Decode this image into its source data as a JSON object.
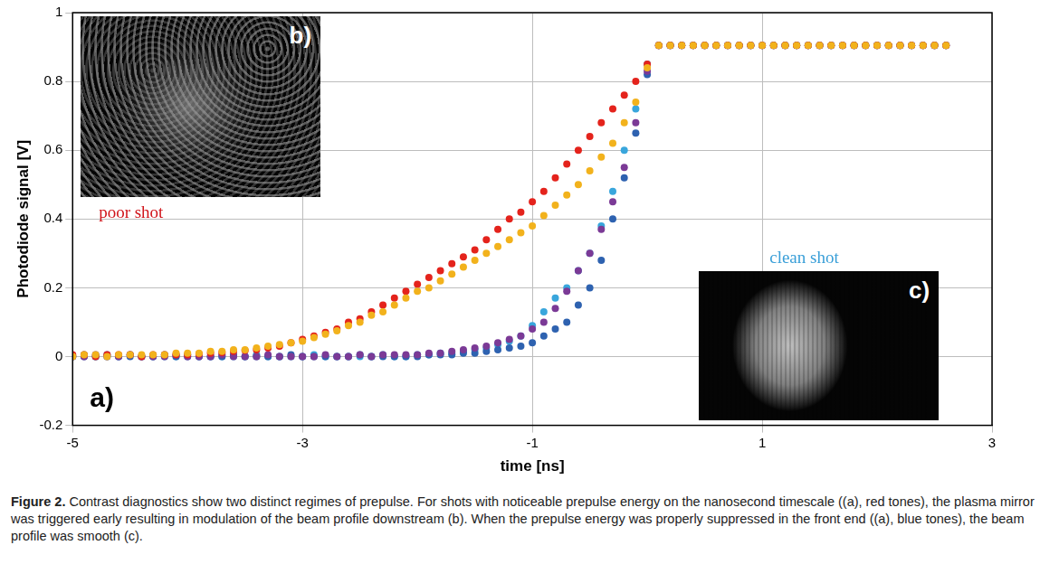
{
  "chart_data": {
    "type": "scatter",
    "x_label": "time [ns]",
    "y_label": "Photodiode signal [V]",
    "panel_label": "a)",
    "x": [
      -5,
      -4.9,
      -4.8,
      -4.7,
      -4.6,
      -4.5,
      -4.4,
      -4.3,
      -4.2,
      -4.1,
      -4,
      -3.9,
      -3.8,
      -3.7,
      -3.6,
      -3.5,
      -3.4,
      -3.3,
      -3.2,
      -3.1,
      -3,
      -2.9,
      -2.8,
      -2.7,
      -2.6,
      -2.5,
      -2.4,
      -2.3,
      -2.2,
      -2.1,
      -2,
      -1.9,
      -1.8,
      -1.7,
      -1.6,
      -1.5,
      -1.4,
      -1.3,
      -1.2,
      -1.1,
      -1,
      -0.9,
      -0.8,
      -0.7,
      -0.6,
      -0.5,
      -0.4,
      -0.3,
      -0.2,
      -0.1,
      0,
      0.1,
      0.2,
      0.3,
      0.4,
      0.5,
      0.6,
      0.7,
      0.8,
      0.9,
      1,
      1.1,
      1.2,
      1.3,
      1.4,
      1.5,
      1.6,
      1.7,
      1.8,
      1.9,
      2,
      2.1,
      2.2,
      2.3,
      2.4,
      2.5,
      2.6
    ],
    "series": [
      {
        "color": "#f2b21c",
        "values": [
          0,
          0.005,
          0.005,
          0,
          0.005,
          0.005,
          0.005,
          0.005,
          0.005,
          0.01,
          0.01,
          0.01,
          0.015,
          0.015,
          0.02,
          0.02,
          0.025,
          0.03,
          0.035,
          0.04,
          0.045,
          0.055,
          0.065,
          0.075,
          0.09,
          0.1,
          0.12,
          0.13,
          0.15,
          0.17,
          0.19,
          0.2,
          0.22,
          0.24,
          0.26,
          0.28,
          0.3,
          0.32,
          0.34,
          0.36,
          0.38,
          0.41,
          0.44,
          0.47,
          0.5,
          0.54,
          0.58,
          0.62,
          0.68,
          0.74,
          0.84,
          0.905,
          0.905,
          0.905,
          0.905,
          0.905,
          0.905,
          0.905,
          0.905,
          0.905,
          0.905,
          0.905,
          0.905,
          0.905,
          0.905,
          0.905,
          0.905,
          0.905,
          0.905,
          0.905,
          0.905,
          0.905,
          0.905,
          0.905,
          0.905,
          0.905,
          0.905
        ]
      },
      {
        "color": "#e4231c",
        "values": [
          0.005,
          0.005,
          0,
          0.005,
          0.005,
          0.005,
          0,
          0.005,
          0.005,
          0.005,
          0.005,
          0.008,
          0.01,
          0.012,
          0.015,
          0.018,
          0.02,
          0.025,
          0.03,
          0.04,
          0.05,
          0.06,
          0.07,
          0.08,
          0.1,
          0.11,
          0.13,
          0.15,
          0.17,
          0.19,
          0.21,
          0.23,
          0.25,
          0.27,
          0.29,
          0.31,
          0.34,
          0.37,
          0.4,
          0.42,
          0.45,
          0.48,
          0.52,
          0.56,
          0.6,
          0.64,
          0.68,
          0.72,
          0.76,
          0.8,
          0.85,
          0.905,
          0.905,
          0.905,
          0.905,
          0.905,
          0.905,
          0.905,
          0.905,
          0.905,
          0.905,
          0.905,
          0.905,
          0.905,
          0.905,
          0.905,
          0.905,
          0.905,
          0.905,
          0.905,
          0.905,
          0.905,
          0.905,
          0.905,
          0.905,
          0.905,
          0.905
        ]
      },
      {
        "color": "#7b3a96",
        "values": [
          0,
          0,
          0.005,
          0,
          0,
          0.005,
          0,
          0,
          0,
          0.005,
          0,
          0,
          0,
          0.005,
          0,
          0,
          0,
          0.005,
          0,
          0,
          0,
          0,
          0.005,
          0,
          0,
          0.005,
          0,
          0.005,
          0.005,
          0.005,
          0.005,
          0.01,
          0.01,
          0.015,
          0.02,
          0.025,
          0.03,
          0.04,
          0.05,
          0.06,
          0.08,
          0.1,
          0.14,
          0.19,
          0.25,
          0.3,
          0.37,
          0.45,
          0.55,
          0.68,
          0.83,
          0.905,
          0.905,
          0.905,
          0.905,
          0.905,
          0.905,
          0.905,
          0.905,
          0.905,
          0.905,
          0.905,
          0.905,
          0.905,
          0.905,
          0.905,
          0.905,
          0.905,
          0.905,
          0.905,
          0.905,
          0.905,
          0.905,
          0.905,
          0.905,
          0.905,
          0.905
        ]
      },
      {
        "color": "#2e62b0",
        "values": [
          0,
          0,
          0,
          0.005,
          0,
          0,
          0,
          0,
          0.005,
          0,
          0,
          0,
          0,
          0,
          0.005,
          0,
          0,
          0,
          0,
          0.005,
          0,
          0,
          0,
          0,
          0,
          0.005,
          0,
          0,
          0,
          0,
          0,
          0.005,
          0.005,
          0.005,
          0.01,
          0.01,
          0.015,
          0.02,
          0.025,
          0.03,
          0.04,
          0.06,
          0.08,
          0.1,
          0.15,
          0.2,
          0.28,
          0.4,
          0.52,
          0.65,
          0.82,
          0.905,
          0.905,
          0.905,
          0.905,
          0.905,
          0.905,
          0.905,
          0.905,
          0.905,
          0.905,
          0.905,
          0.905,
          0.905,
          0.905,
          0.905,
          0.905,
          0.905,
          0.905,
          0.905,
          0.905,
          0.905,
          0.905,
          0.905,
          0.905,
          0.905,
          0.905
        ]
      },
      {
        "color": "#39a6dc",
        "values": [
          0,
          0.005,
          0,
          0,
          0,
          0.005,
          0,
          0,
          0,
          0,
          0.005,
          0,
          0,
          0,
          0,
          0,
          0.005,
          0,
          0,
          0,
          0,
          0.005,
          0,
          0,
          0,
          0,
          0,
          0.005,
          0,
          0,
          0.005,
          0.005,
          0.01,
          0.01,
          0.015,
          0.02,
          0.025,
          0.035,
          0.045,
          0.06,
          0.09,
          0.13,
          0.17,
          0.2,
          0.25,
          0.3,
          0.38,
          0.48,
          0.6,
          0.72,
          0.85,
          0.905,
          0.905,
          0.905,
          0.905,
          0.905,
          0.905,
          0.905,
          0.905,
          0.905,
          0.905,
          0.905,
          0.905,
          0.905,
          0.905,
          0.905,
          0.905,
          0.905,
          0.905,
          0.905,
          0.905,
          0.905,
          0.905,
          0.905,
          0.905,
          0.905,
          0.905
        ]
      }
    ],
    "xlim": [
      -5,
      3
    ],
    "xticks": [
      -5,
      -3,
      -1,
      1,
      3
    ],
    "ylim": [
      -0.2,
      1
    ],
    "yticks": [
      -0.2,
      0,
      0.2,
      0.4,
      0.6,
      0.8,
      1
    ],
    "grid": true,
    "marker": "circle"
  },
  "insets": [
    {
      "label": "b)",
      "caption": "poor shot",
      "caption_color": "#d0141a"
    },
    {
      "label": "c)",
      "caption": "clean shot",
      "caption_color": "#3a9fd8"
    }
  ],
  "figure_caption": {
    "label": "Figure 2.",
    "text": "Contrast diagnostics show two distinct regimes of prepulse. For shots with noticeable prepulse energy on the nanosecond timescale ((a), red tones), the plasma mirror was triggered early resulting in modulation of the beam profile downstream (b). When the prepulse energy was properly suppressed in the front end ((a), blue tones), the beam profile was smooth (c)."
  }
}
